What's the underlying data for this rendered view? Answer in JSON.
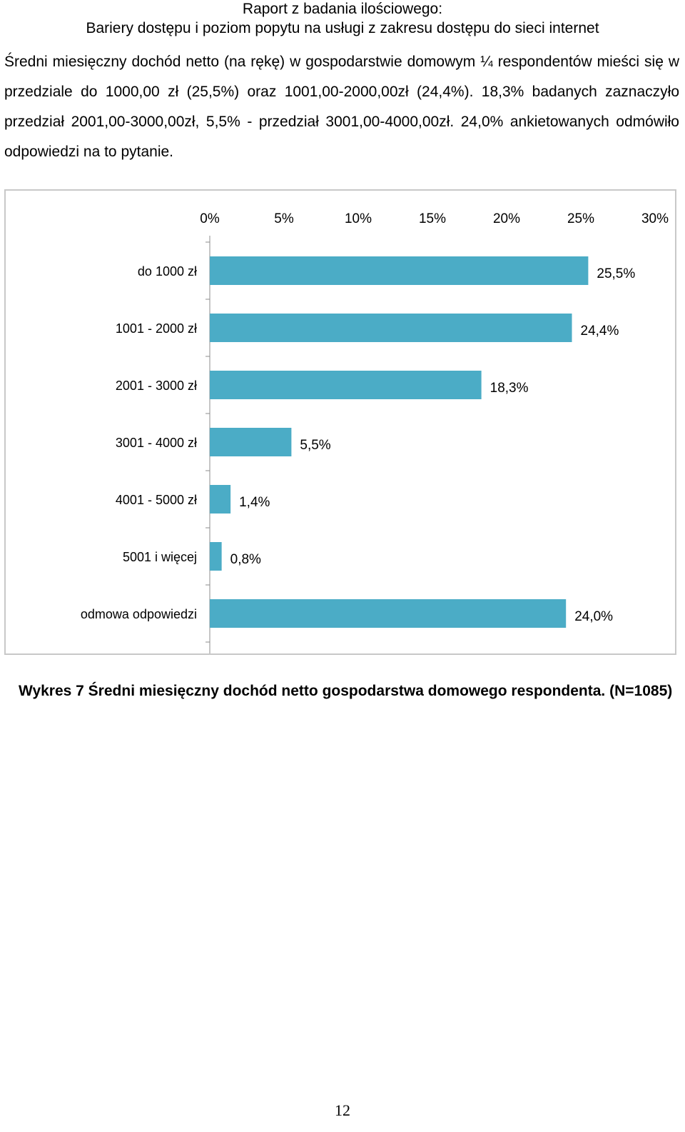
{
  "header": {
    "line1": "Raport z badania ilościowego:",
    "line2": "Bariery dostępu i poziom popytu na usługi z zakresu dostępu do sieci internet"
  },
  "paragraph": "Średni miesięczny dochód netto (na rękę) w gospodarstwie domowym ¼ respondentów mieści się w przedziale do 1000,00 zł (25,5%) oraz 1001,00-2000,00zł (24,4%). 18,3% badanych zaznaczyło przedział 2001,00-3000,00zł, 5,5% - przedział 3001,00-4000,00zł. 24,0% ankietowanych odmówiło odpowiedzi na to pytanie.",
  "chart_data": {
    "type": "bar",
    "orientation": "horizontal",
    "categories": [
      "do 1000 zł",
      "1001 - 2000 zł",
      "2001 - 3000 zł",
      "3001 - 4000 zł",
      "4001 - 5000 zł",
      "5001 i więcej",
      "odmowa odpowiedzi"
    ],
    "values": [
      25.5,
      24.4,
      18.3,
      5.5,
      1.4,
      0.8,
      24.0
    ],
    "value_labels": [
      "25,5%",
      "24,4%",
      "18,3%",
      "5,5%",
      "1,4%",
      "0,8%",
      "24,0%"
    ],
    "xlim": [
      0,
      30
    ],
    "xticks": [
      0,
      5,
      10,
      15,
      20,
      25,
      30
    ],
    "xtick_labels": [
      "0%",
      "5%",
      "10%",
      "15%",
      "20%",
      "25%",
      "30%"
    ],
    "x_axis_position": "top",
    "grid": false,
    "legend": "none",
    "bar_color": "#4bacc6"
  },
  "caption": "Wykres 7 Średni miesięczny dochód netto gospodarstwa domowego respondenta.  (N=1085)",
  "page_number": "12"
}
